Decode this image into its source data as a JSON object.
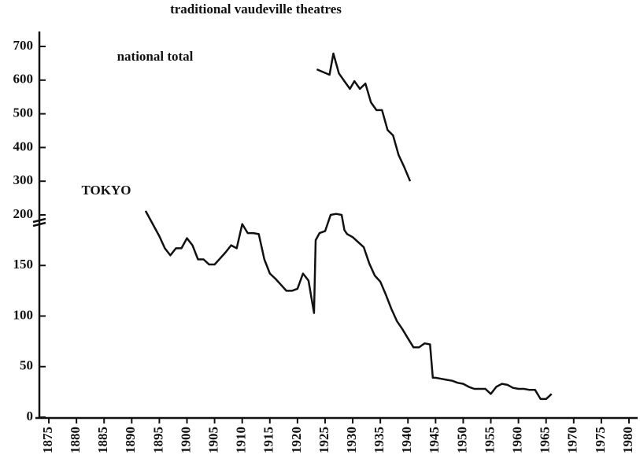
{
  "chart_data": {
    "type": "line",
    "title": "traditional vaudeville theatres",
    "xlim": [
      1873,
      1981
    ],
    "xticks": [
      1875,
      1880,
      1885,
      1890,
      1895,
      1900,
      1905,
      1910,
      1915,
      1920,
      1925,
      1930,
      1935,
      1940,
      1945,
      1950,
      1955,
      1960,
      1965,
      1970,
      1975,
      1980
    ],
    "ylim": [
      0,
      200
    ],
    "yticks": [
      0,
      50,
      100,
      150
    ],
    "y2lim": [
      200,
      700
    ],
    "y2ticks": [
      200,
      300,
      400,
      500,
      600,
      700
    ],
    "series": [
      {
        "name": "national total",
        "color": "#111111",
        "axis": "y2",
        "x": [
          1923.5,
          1924.5,
          1925.8,
          1926.5,
          1927.5,
          1928.5,
          1929.5,
          1930.3,
          1931.3,
          1932.3,
          1933.3,
          1934.3,
          1935.3,
          1936.3,
          1937.3,
          1938.3,
          1939.3,
          1940.4
        ],
        "values": [
          632,
          625,
          616,
          679,
          620,
          597,
          574,
          597,
          574,
          590,
          534,
          511,
          511,
          452,
          436,
          378,
          343,
          300
        ]
      },
      {
        "name": "TOKYO",
        "color": "#111111",
        "x": [
          1892.5,
          1895,
          1896,
          1897,
          1898,
          1899,
          1900,
          1901,
          1902,
          1903,
          1904,
          1905,
          1906,
          1907,
          1908,
          1909,
          1910,
          1911,
          1912,
          1913,
          1914,
          1915,
          1916,
          1917,
          1918,
          1919,
          1920,
          1921,
          1922,
          1923,
          1923.3,
          1924,
          1925,
          1926,
          1927,
          1928,
          1928.5,
          1929,
          1930,
          1931,
          1932,
          1933,
          1934,
          1935,
          1936,
          1937,
          1938,
          1939,
          1940,
          1941,
          1942,
          1943,
          1944,
          1944.5,
          1945,
          1946,
          1947,
          1948,
          1949,
          1950,
          1951,
          1952,
          1953,
          1954,
          1955,
          1956,
          1957,
          1958,
          1959,
          1960,
          1961,
          1962,
          1963,
          1964,
          1965,
          1966
        ],
        "values": [
          204,
          179,
          167,
          160,
          167,
          167,
          177,
          170,
          156,
          156,
          151,
          151,
          157,
          163,
          170,
          167,
          191,
          182,
          182,
          181,
          156,
          142,
          137,
          131,
          125,
          125,
          127,
          142,
          135,
          103,
          175,
          182,
          184,
          200,
          201,
          200,
          185,
          181,
          178,
          173,
          168,
          152,
          140,
          134,
          121,
          107,
          95,
          87,
          78,
          69,
          69,
          73,
          72,
          39,
          39,
          38,
          37,
          36,
          34,
          33,
          30,
          28,
          28,
          28,
          23,
          30,
          33,
          32,
          29,
          28,
          28,
          27,
          27,
          18,
          18,
          23
        ]
      }
    ]
  }
}
